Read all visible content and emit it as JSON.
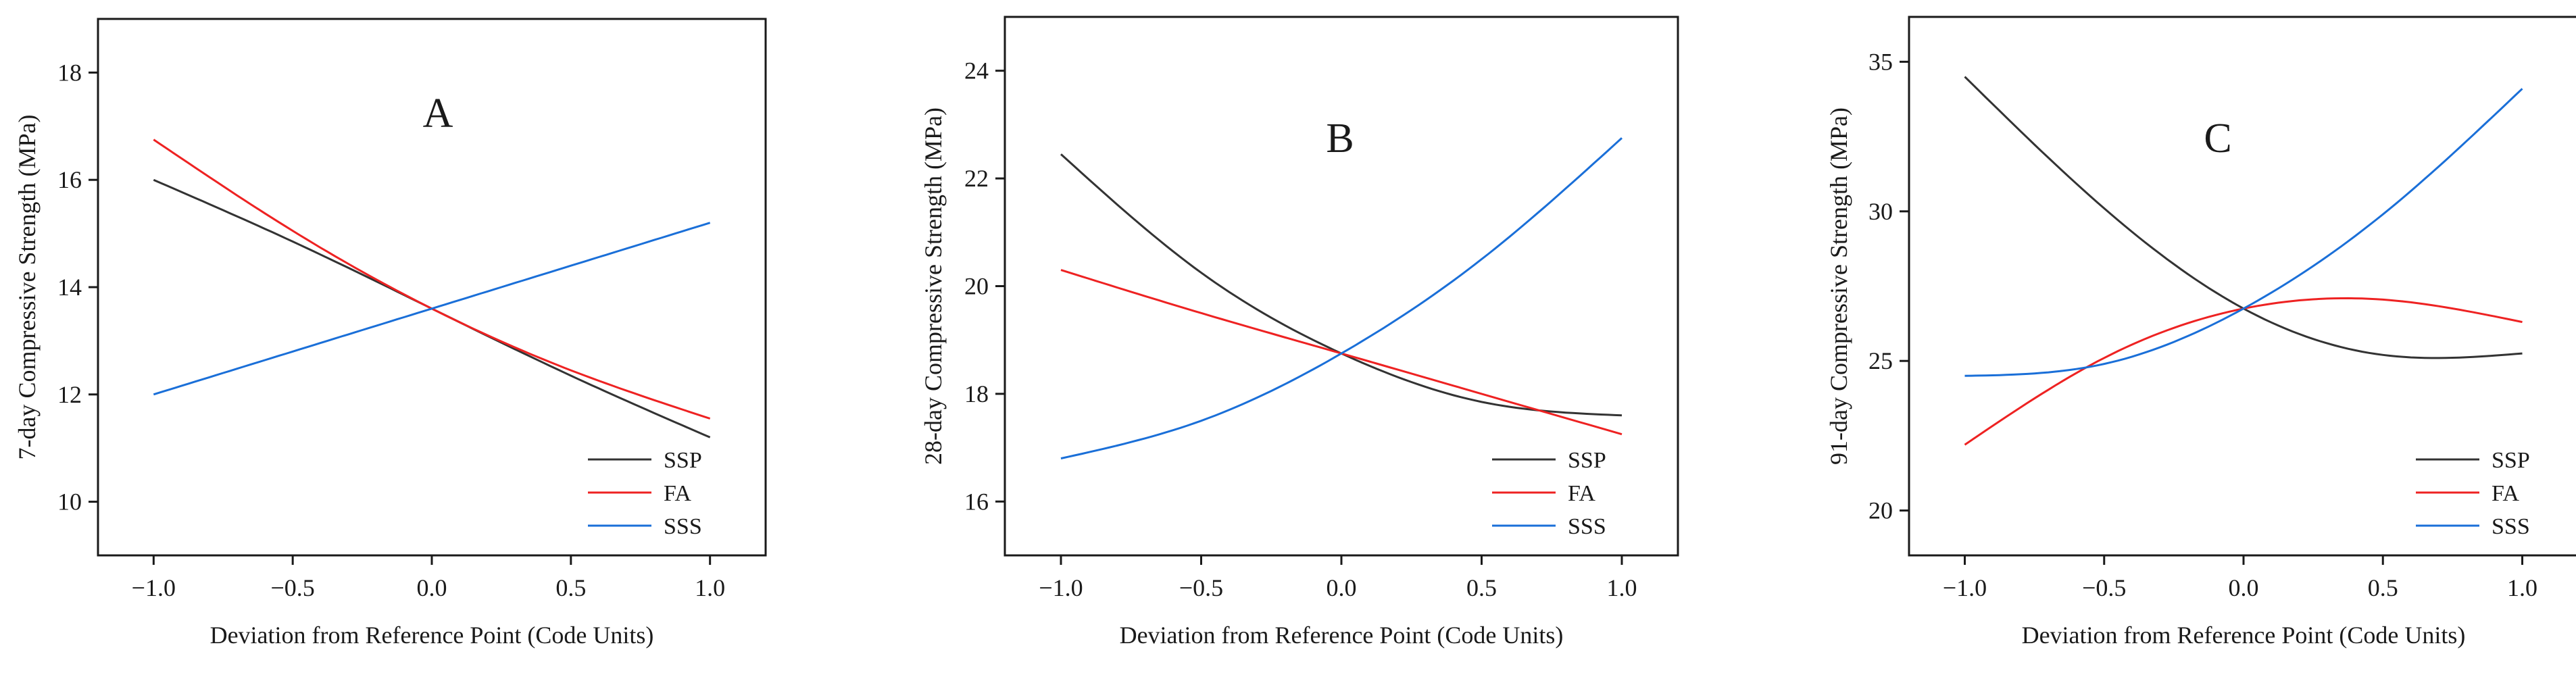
{
  "chart_data": [
    {
      "type": "line",
      "panel_label": "A",
      "xlabel": "Deviation from Reference Point (Code Units)",
      "ylabel": "7-day Compressive Strength (MPa)",
      "xlim": [
        -1.2,
        1.2
      ],
      "ylim": [
        9.0,
        19.0
      ],
      "xticks": [
        -1.0,
        -0.5,
        0.0,
        0.5,
        1.0
      ],
      "xtick_labels": [
        "−1.0",
        "−0.5",
        "0.0",
        "0.5",
        "1.0"
      ],
      "yticks": [
        10,
        12,
        14,
        16,
        18
      ],
      "ytick_labels": [
        "10",
        "12",
        "14",
        "16",
        "18"
      ],
      "legend_position": "bottom-right",
      "series": [
        {
          "name": "SSP",
          "color": "#333333",
          "x": [
            -1.0,
            -0.5,
            0.0,
            0.5,
            1.0
          ],
          "y": [
            16.0,
            14.85,
            13.6,
            12.35,
            11.2
          ]
        },
        {
          "name": "FA",
          "color": "#ee2222",
          "x": [
            -1.0,
            -0.5,
            0.0,
            0.5,
            1.0
          ],
          "y": [
            16.75,
            15.05,
            13.6,
            12.45,
            11.55
          ]
        },
        {
          "name": "SSS",
          "color": "#1a6fd8",
          "x": [
            -1.0,
            -0.5,
            0.0,
            0.5,
            1.0
          ],
          "y": [
            12.0,
            12.8,
            13.6,
            14.4,
            15.2
          ]
        }
      ]
    },
    {
      "type": "line",
      "panel_label": "B",
      "xlabel": "Deviation from Reference Point (Code Units)",
      "ylabel": "28-day Compressive Strength (MPa)",
      "xlim": [
        -1.2,
        1.2
      ],
      "ylim": [
        15.0,
        25.0
      ],
      "xticks": [
        -1.0,
        -0.5,
        0.0,
        0.5,
        1.0
      ],
      "xtick_labels": [
        "−1.0",
        "−0.5",
        "0.0",
        "0.5",
        "1.0"
      ],
      "yticks": [
        16,
        18,
        20,
        22,
        24
      ],
      "ytick_labels": [
        "16",
        "18",
        "20",
        "22",
        "24"
      ],
      "legend_position": "bottom-right",
      "series": [
        {
          "name": "SSP",
          "color": "#333333",
          "x": [
            -1.0,
            -0.5,
            0.0,
            0.5,
            1.0
          ],
          "y": [
            22.45,
            20.25,
            18.75,
            17.85,
            17.6
          ]
        },
        {
          "name": "FA",
          "color": "#ee2222",
          "x": [
            -1.0,
            -0.5,
            0.0,
            0.5,
            1.0
          ],
          "y": [
            20.3,
            19.5,
            18.75,
            18.0,
            17.25
          ]
        },
        {
          "name": "SSS",
          "color": "#1a6fd8",
          "x": [
            -1.0,
            -0.5,
            0.0,
            0.5,
            1.0
          ],
          "y": [
            16.8,
            17.5,
            18.75,
            20.5,
            22.75
          ]
        }
      ]
    },
    {
      "type": "line",
      "panel_label": "C",
      "xlabel": "Deviation from Reference Point (Code Units)",
      "ylabel": "91-day Compressive Strength (MPa)",
      "xlim": [
        -1.2,
        1.2
      ],
      "ylim": [
        18.5,
        36.5
      ],
      "xticks": [
        -1.0,
        -0.5,
        0.0,
        0.5,
        1.0
      ],
      "xtick_labels": [
        "−1.0",
        "−0.5",
        "0.0",
        "0.5",
        "1.0"
      ],
      "yticks": [
        20,
        25,
        30,
        35
      ],
      "ytick_labels": [
        "20",
        "25",
        "30",
        "35"
      ],
      "legend_position": "bottom-right",
      "series": [
        {
          "name": "SSP",
          "color": "#333333",
          "x": [
            -1.0,
            -0.5,
            0.0,
            0.5,
            1.0
          ],
          "y": [
            34.5,
            30.1,
            26.75,
            25.2,
            25.25
          ]
        },
        {
          "name": "FA",
          "color": "#ee2222",
          "x": [
            -1.0,
            -0.5,
            0.0,
            0.5,
            1.0
          ],
          "y": [
            22.2,
            25.1,
            26.75,
            27.05,
            26.3
          ]
        },
        {
          "name": "SSS",
          "color": "#1a6fd8",
          "x": [
            -1.0,
            -0.5,
            0.0,
            0.5,
            1.0
          ],
          "y": [
            24.5,
            24.9,
            26.75,
            29.9,
            34.1
          ]
        }
      ]
    }
  ]
}
